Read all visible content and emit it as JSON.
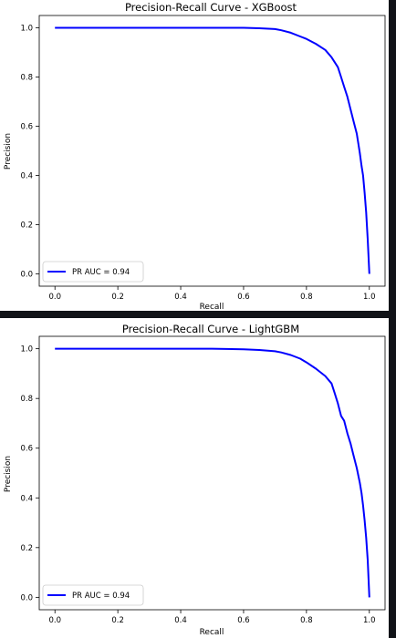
{
  "chart_data": [
    {
      "type": "line",
      "title": "Precision-Recall Curve - XGBoost",
      "xlabel": "Recall",
      "ylabel": "Precision",
      "xlim": [
        -0.05,
        1.05
      ],
      "ylim": [
        -0.05,
        1.05
      ],
      "xticks": [
        "0.0",
        "0.2",
        "0.4",
        "0.6",
        "0.8",
        "1.0"
      ],
      "yticks": [
        "0.0",
        "0.2",
        "0.4",
        "0.6",
        "0.8",
        "1.0"
      ],
      "grid": false,
      "legend_position": "lower-left",
      "series": [
        {
          "name": "PR AUC = 0.94",
          "color": "#0000ff",
          "x": [
            0.0,
            0.1,
            0.2,
            0.3,
            0.4,
            0.5,
            0.6,
            0.65,
            0.7,
            0.72,
            0.75,
            0.78,
            0.8,
            0.83,
            0.86,
            0.88,
            0.9,
            0.91,
            0.92,
            0.93,
            0.94,
            0.95,
            0.96,
            0.965,
            0.97,
            0.975,
            0.98,
            0.985,
            0.99,
            0.995,
            1.0
          ],
          "y": [
            1.0,
            1.0,
            1.0,
            1.0,
            1.0,
            1.0,
            1.0,
            0.998,
            0.995,
            0.99,
            0.98,
            0.965,
            0.955,
            0.935,
            0.91,
            0.88,
            0.84,
            0.8,
            0.76,
            0.72,
            0.67,
            0.62,
            0.57,
            0.53,
            0.49,
            0.44,
            0.4,
            0.33,
            0.25,
            0.14,
            0.0
          ]
        }
      ]
    },
    {
      "type": "line",
      "title": "Precision-Recall Curve - LightGBM",
      "xlabel": "Recall",
      "ylabel": "Precision",
      "xlim": [
        -0.05,
        1.05
      ],
      "ylim": [
        -0.05,
        1.05
      ],
      "xticks": [
        "0.0",
        "0.2",
        "0.4",
        "0.6",
        "0.8",
        "1.0"
      ],
      "yticks": [
        "0.0",
        "0.2",
        "0.4",
        "0.6",
        "0.8",
        "1.0"
      ],
      "grid": false,
      "legend_position": "lower-left",
      "series": [
        {
          "name": "PR AUC = 0.94",
          "color": "#0000ff",
          "x": [
            0.0,
            0.1,
            0.2,
            0.3,
            0.4,
            0.5,
            0.6,
            0.65,
            0.7,
            0.72,
            0.75,
            0.78,
            0.8,
            0.83,
            0.86,
            0.88,
            0.89,
            0.9,
            0.91,
            0.92,
            0.93,
            0.94,
            0.95,
            0.96,
            0.97,
            0.975,
            0.98,
            0.985,
            0.99,
            0.995,
            1.0
          ],
          "y": [
            1.0,
            1.0,
            1.0,
            1.0,
            1.0,
            1.0,
            0.998,
            0.995,
            0.99,
            0.985,
            0.975,
            0.96,
            0.945,
            0.92,
            0.89,
            0.86,
            0.82,
            0.78,
            0.73,
            0.71,
            0.66,
            0.62,
            0.57,
            0.52,
            0.46,
            0.42,
            0.37,
            0.31,
            0.24,
            0.15,
            0.0
          ]
        }
      ]
    }
  ]
}
